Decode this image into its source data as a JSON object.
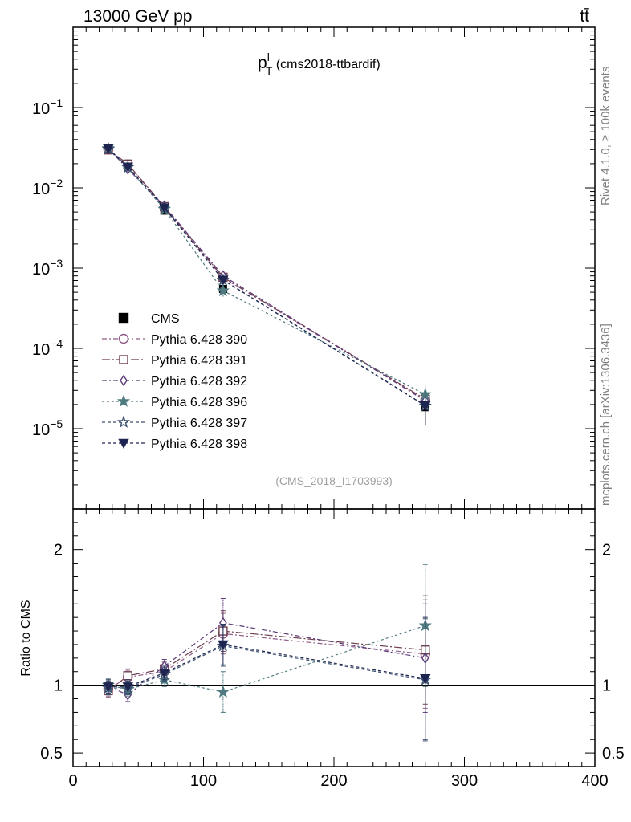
{
  "header": {
    "energy_label": "13000 GeV pp",
    "process_label": "tt̄"
  },
  "side": {
    "rivet_label": "Rivet 4.1.0, ≥ 100k events",
    "mcplots_label": "mcplots.cern.ch [arXiv:1306.3436]"
  },
  "chart_data": {
    "type": "line",
    "title": "p",
    "title_sup": "l",
    "title_sub": "T",
    "title_suffix": " (cms2018-ttbardif)",
    "analysis_label": "(CMS_2018_I1703993)",
    "xlabel": "",
    "ylabel_ratio": "Ratio to CMS",
    "xlim": [
      0,
      400
    ],
    "ylim_main": [
      1e-06,
      1
    ],
    "ylim_ratio": [
      0.4,
      2.3
    ],
    "x_ticks": [
      0,
      100,
      200,
      300,
      400
    ],
    "x_tick_labels": [
      "0",
      "100",
      "200",
      "300",
      "400"
    ],
    "y_ticks_main": [
      0.1,
      0.01,
      0.001,
      0.0001,
      1e-05
    ],
    "y_tick_labels_main": [
      {
        "base": "10",
        "exp": "−1"
      },
      {
        "base": "10",
        "exp": "−2"
      },
      {
        "base": "10",
        "exp": "−3"
      },
      {
        "base": "10",
        "exp": "−4"
      },
      {
        "base": "10",
        "exp": "−5"
      }
    ],
    "y_ticks_ratio": [
      0.5,
      1,
      2
    ],
    "y_tick_labels_ratio": [
      "0.5",
      "1",
      "2"
    ],
    "x": [
      27,
      42,
      70,
      115,
      270
    ],
    "data": {
      "name": "CMS",
      "values": [
        0.031,
        0.0185,
        0.0052,
        0.00055,
        1.85e-05
      ],
      "rel_err": [
        0.04,
        0.04,
        0.05,
        0.08,
        0.4
      ]
    },
    "series": [
      {
        "name": "Pythia 6.428 390",
        "color": "#8d5c88",
        "marker": "circle-open",
        "dash": "6,3,2,3",
        "ratio": [
          0.97,
          1.06,
          1.1,
          1.38,
          1.23
        ],
        "ratio_err": [
          0.05,
          0.05,
          0.05,
          0.15,
          0.4
        ]
      },
      {
        "name": "Pythia 6.428 391",
        "color": "#6e3f4e",
        "marker": "square-open",
        "dash": "10,3,2,3",
        "ratio": [
          0.96,
          1.07,
          1.12,
          1.4,
          1.26
        ],
        "ratio_err": [
          0.05,
          0.05,
          0.05,
          0.15,
          0.4
        ]
      },
      {
        "name": "Pythia 6.428 392",
        "color": "#5c3a7a",
        "marker": "diamond-open",
        "dash": "6,3,2,3",
        "ratio": [
          0.99,
          0.93,
          1.14,
          1.46,
          1.2
        ],
        "ratio_err": [
          0.05,
          0.05,
          0.05,
          0.18,
          0.4
        ]
      },
      {
        "name": "Pythia 6.428 396",
        "color": "#4f7a80",
        "marker": "star-filled",
        "dash": "3,3",
        "ratio": [
          1.0,
          0.97,
          1.04,
          0.95,
          1.44
        ],
        "ratio_err": [
          0.05,
          0.05,
          0.05,
          0.15,
          0.45
        ]
      },
      {
        "name": "Pythia 6.428 397",
        "color": "#3a506e",
        "marker": "star-open",
        "dash": "4,3",
        "ratio": [
          0.98,
          0.98,
          1.08,
          1.29,
          1.04
        ],
        "ratio_err": [
          0.05,
          0.05,
          0.05,
          0.15,
          0.45
        ]
      },
      {
        "name": "Pythia 6.428 398",
        "color": "#1e2550",
        "marker": "triangle-down-filled",
        "dash": "4,3",
        "ratio": [
          0.99,
          0.99,
          1.09,
          1.3,
          1.05
        ],
        "ratio_err": [
          0.05,
          0.05,
          0.05,
          0.15,
          0.45
        ]
      }
    ]
  }
}
